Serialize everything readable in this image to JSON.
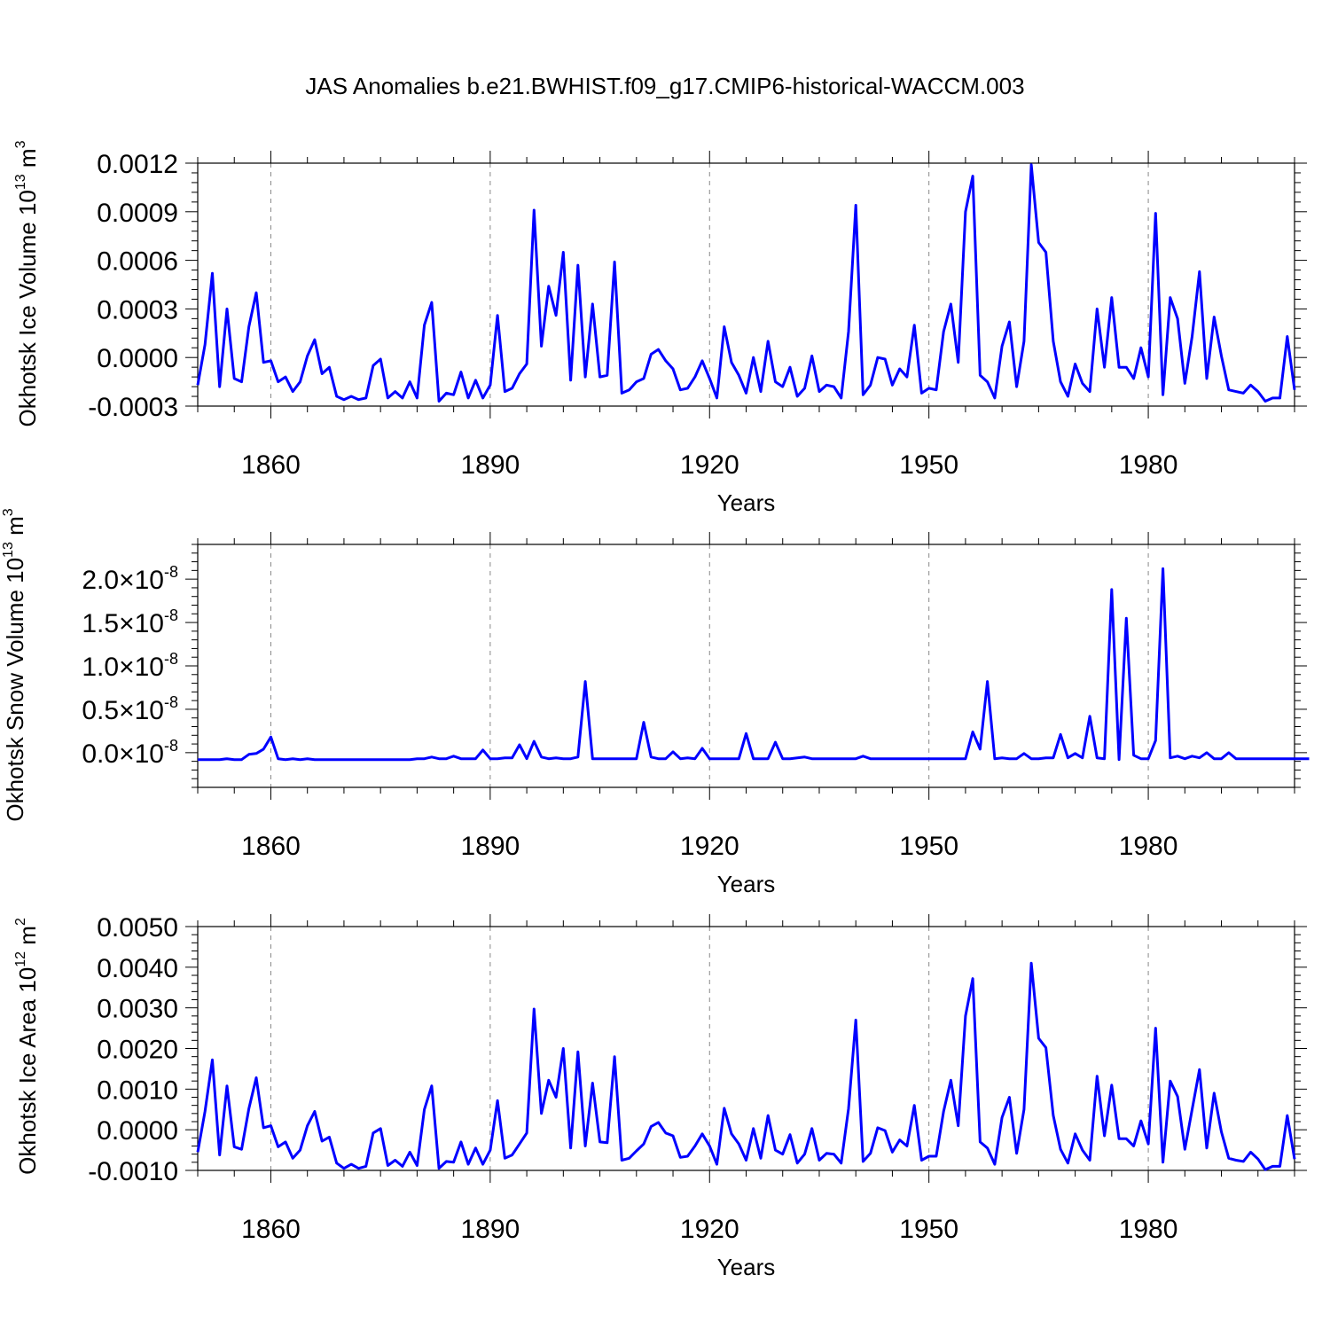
{
  "title": "JAS Anomalies b.e21.BWHIST.f09_g17.CMIP6-historical-WACCM.003",
  "colors": {
    "line": "#0000ff",
    "axes": "#000000",
    "grid": "#888888"
  },
  "chart_data": [
    {
      "type": "line",
      "ylabel_main": "Okhotsk Ice Volume 10",
      "ylabel_exp": "13",
      "ylabel_unit": " m",
      "ylabel_unit_exp": "3",
      "xlabel": "Years",
      "xlim": [
        1850,
        2000
      ],
      "ylim": [
        -0.0003,
        0.0012
      ],
      "yticks": [
        -0.0003,
        0,
        0.0003,
        0.0006,
        0.0009,
        0.0012
      ],
      "ytick_labels": [
        "-0.0003",
        "0.0000",
        "0.0003",
        "0.0006",
        "0.0009",
        "0.0012"
      ],
      "xticks": [
        1860,
        1890,
        1920,
        1950,
        1980
      ],
      "xtick_labels": [
        "1860",
        "1890",
        "1920",
        "1950",
        "1980"
      ],
      "grid": "vertical dashed at x ticks",
      "series": [
        {
          "x_start": 1850,
          "values": [
            -0.00017,
            8e-05,
            0.00052,
            -0.00018,
            0.0003,
            -0.00013,
            -0.00015,
            0.00019,
            0.0004,
            -3e-05,
            -2e-05,
            -0.00015,
            -0.00012,
            -0.00021,
            -0.00015,
            1e-05,
            0.00011,
            -0.0001,
            -6e-05,
            -0.00024,
            -0.00026,
            -0.00024,
            -0.00026,
            -0.00025,
            -5e-05,
            -1e-05,
            -0.00025,
            -0.00021,
            -0.00025,
            -0.00015,
            -0.00025,
            0.0002,
            0.00034,
            -0.00027,
            -0.00022,
            -0.00023,
            -9e-05,
            -0.00025,
            -0.00014,
            -0.00025,
            -0.00017,
            0.00026,
            -0.00021,
            -0.00019,
            -0.0001,
            -4e-05,
            0.00091,
            7e-05,
            0.00044,
            0.00026,
            0.00065,
            -0.00014,
            0.00057,
            -0.00012,
            0.00033,
            -0.00012,
            -0.00011,
            0.00059,
            -0.00022,
            -0.0002,
            -0.00015,
            -0.00013,
            2e-05,
            5e-05,
            -2e-05,
            -7e-05,
            -0.0002,
            -0.00019,
            -0.00012,
            -2e-05,
            -0.00013,
            -0.00025,
            0.00019,
            -3e-05,
            -0.00011,
            -0.00022,
            0.0,
            -0.00021,
            0.0001,
            -0.00015,
            -0.00018,
            -6e-05,
            -0.00024,
            -0.00019,
            1e-05,
            -0.00021,
            -0.00017,
            -0.00018,
            -0.00025,
            0.00016,
            0.00094,
            -0.00023,
            -0.00017,
            0.0,
            -1e-05,
            -0.00017,
            -7e-05,
            -0.00012,
            0.0002,
            -0.00022,
            -0.00019,
            -0.0002,
            0.00016,
            0.00033,
            -3e-05,
            0.0009,
            0.00112,
            -0.00011,
            -0.00015,
            -0.00025,
            7e-05,
            0.00022,
            -0.00018,
            0.0001,
            0.00119,
            0.00071,
            0.00065,
            0.0001,
            -0.00015,
            -0.00024,
            -4e-05,
            -0.00016,
            -0.00021,
            0.0003,
            -6e-05,
            0.00037,
            -6e-05,
            -6e-05,
            -0.00013,
            6e-05,
            -0.00012,
            0.00089,
            -0.00023,
            0.00037,
            0.00024,
            -0.00016,
            0.00013,
            0.00053,
            -0.00013,
            0.00025,
            1e-05,
            -0.0002,
            -0.00021,
            -0.00022,
            -0.00017,
            -0.00021,
            -0.00027,
            -0.00025,
            -0.00025,
            0.00013,
            -0.0002
          ]
        }
      ]
    },
    {
      "type": "line",
      "ylabel_main": "Okhotsk Snow Volume 10",
      "ylabel_exp": "13",
      "ylabel_unit": " m",
      "ylabel_unit_exp": "3",
      "xlabel": "Years",
      "xlim": [
        1850,
        2000
      ],
      "ylim": [
        -4e-09,
        2.4e-08
      ],
      "yticks": [
        0,
        5e-09,
        1e-08,
        1.5e-08,
        2e-08
      ],
      "ytick_labels": [
        "0.0",
        "0.5",
        "1.0",
        "1.5",
        "2.0"
      ],
      "ytick_multiplier": "×10",
      "ytick_exp": "-8",
      "xticks": [
        1860,
        1890,
        1920,
        1950,
        1980
      ],
      "xtick_labels": [
        "1860",
        "1890",
        "1920",
        "1950",
        "1980"
      ],
      "grid": "vertical dashed at x ticks",
      "series": [
        {
          "x_start": 1850,
          "values": [
            -0.08,
            -0.08,
            -0.08,
            -0.08,
            -0.07,
            -0.08,
            -0.08,
            -0.02,
            -0.01,
            0.04,
            0.18,
            -0.07,
            -0.08,
            -0.07,
            -0.08,
            -0.07,
            -0.08,
            -0.08,
            -0.08,
            -0.08,
            -0.08,
            -0.08,
            -0.08,
            -0.08,
            -0.08,
            -0.08,
            -0.08,
            -0.08,
            -0.08,
            -0.08,
            -0.07,
            -0.07,
            -0.05,
            -0.07,
            -0.07,
            -0.04,
            -0.07,
            -0.07,
            -0.07,
            0.03,
            -0.07,
            -0.07,
            -0.06,
            -0.06,
            0.09,
            -0.07,
            0.13,
            -0.05,
            -0.07,
            -0.06,
            -0.07,
            -0.07,
            -0.05,
            0.82,
            -0.07,
            -0.07,
            -0.07,
            -0.07,
            -0.07,
            -0.07,
            -0.07,
            0.35,
            -0.05,
            -0.07,
            -0.07,
            0.01,
            -0.07,
            -0.06,
            -0.07,
            0.05,
            -0.07,
            -0.07,
            -0.07,
            -0.07,
            -0.07,
            0.22,
            -0.07,
            -0.07,
            -0.07,
            0.12,
            -0.07,
            -0.07,
            -0.06,
            -0.05,
            -0.07,
            -0.07,
            -0.07,
            -0.07,
            -0.07,
            -0.07,
            -0.07,
            -0.04,
            -0.07,
            -0.07,
            -0.07,
            -0.07,
            -0.07,
            -0.07,
            -0.07,
            -0.07,
            -0.07,
            -0.07,
            -0.07,
            -0.07,
            -0.07,
            -0.07,
            0.24,
            0.04,
            0.82,
            -0.07,
            -0.06,
            -0.07,
            -0.07,
            -0.01,
            -0.07,
            -0.07,
            -0.06,
            -0.06,
            0.21,
            -0.06,
            -0.01,
            -0.06,
            0.42,
            -0.06,
            -0.07,
            1.88,
            -0.08,
            1.55,
            -0.03,
            -0.07,
            -0.07,
            0.14,
            2.12,
            -0.06,
            -0.04,
            -0.07,
            -0.04,
            -0.06,
            0.0,
            -0.07,
            -0.07,
            0.0,
            -0.07,
            -0.07,
            -0.07,
            -0.07,
            -0.07,
            -0.07,
            -0.07,
            -0.07,
            -0.07,
            -0.07,
            -0.07
          ]
        }
      ]
    },
    {
      "type": "line",
      "ylabel_main": "Okhotsk Ice Area 10",
      "ylabel_exp": "12",
      "ylabel_unit": " m",
      "ylabel_unit_exp": "2",
      "xlabel": "Years",
      "xlim": [
        1850,
        2000
      ],
      "ylim": [
        -0.001,
        0.005
      ],
      "yticks": [
        -0.001,
        0,
        0.001,
        0.002,
        0.003,
        0.004,
        0.005
      ],
      "ytick_labels": [
        "-0.0010",
        "0.0000",
        "0.0010",
        "0.0020",
        "0.0030",
        "0.0040",
        "0.0050"
      ],
      "xticks": [
        1860,
        1890,
        1920,
        1950,
        1980
      ],
      "xtick_labels": [
        "1860",
        "1890",
        "1920",
        "1950",
        "1980"
      ],
      "grid": "vertical dashed at x ticks",
      "series": [
        {
          "x_start": 1850,
          "values": [
            -0.00055,
            0.00045,
            0.00172,
            -0.00062,
            0.00108,
            -0.00042,
            -0.00048,
            0.00052,
            0.00128,
            5e-05,
            0.0001,
            -0.00042,
            -0.0003,
            -0.0007,
            -0.0005,
            0.0001,
            0.00045,
            -0.00028,
            -0.00018,
            -0.00082,
            -0.00095,
            -0.00085,
            -0.00095,
            -0.0009,
            -8e-05,
            3e-05,
            -0.00088,
            -0.00075,
            -0.0009,
            -0.00055,
            -0.00088,
            0.0005,
            0.00108,
            -0.00095,
            -0.00078,
            -0.0008,
            -0.0003,
            -0.00085,
            -0.00045,
            -0.00085,
            -0.0005,
            0.00072,
            -0.0007,
            -0.00062,
            -0.00035,
            -8e-05,
            0.00297,
            0.0004,
            0.00122,
            0.0008,
            0.002,
            -0.00045,
            0.00192,
            -0.0004,
            0.00115,
            -0.0003,
            -0.00032,
            0.0018,
            -0.00075,
            -0.0007,
            -0.00052,
            -0.00035,
            8e-05,
            0.00018,
            -8e-05,
            -0.00015,
            -0.00068,
            -0.00065,
            -0.0004,
            -0.0001,
            -0.0004,
            -0.00085,
            0.00053,
            -0.0001,
            -0.00035,
            -0.00075,
            3e-05,
            -0.0007,
            0.00035,
            -0.0005,
            -0.0006,
            -0.00012,
            -0.00082,
            -0.0006,
            3e-05,
            -0.00075,
            -0.00058,
            -0.0006,
            -0.00082,
            0.00052,
            0.0027,
            -0.00078,
            -0.00058,
            5e-05,
            -2e-05,
            -0.00055,
            -0.00025,
            -0.0004,
            0.0006,
            -0.00075,
            -0.00065,
            -0.00065,
            0.00045,
            0.00122,
            0.0001,
            0.0028,
            0.00372,
            -0.0003,
            -0.00045,
            -0.00085,
            0.0003,
            0.0008,
            -0.00058,
            0.0005,
            0.0041,
            0.00225,
            0.00202,
            0.00035,
            -0.00048,
            -0.00082,
            -0.0001,
            -0.0005,
            -0.00075,
            0.00132,
            -0.00015,
            0.0011,
            -0.00022,
            -0.00022,
            -0.0004,
            0.00022,
            -0.00035,
            0.0025,
            -0.0008,
            0.0012,
            0.00082,
            -0.00048,
            0.0005,
            0.00148,
            -0.00045,
            0.0009,
            -5e-05,
            -0.0007,
            -0.00075,
            -0.00078,
            -0.00055,
            -0.00072,
            -0.00098,
            -0.0009,
            -0.0009,
            0.00035,
            -0.00072
          ]
        }
      ]
    }
  ]
}
